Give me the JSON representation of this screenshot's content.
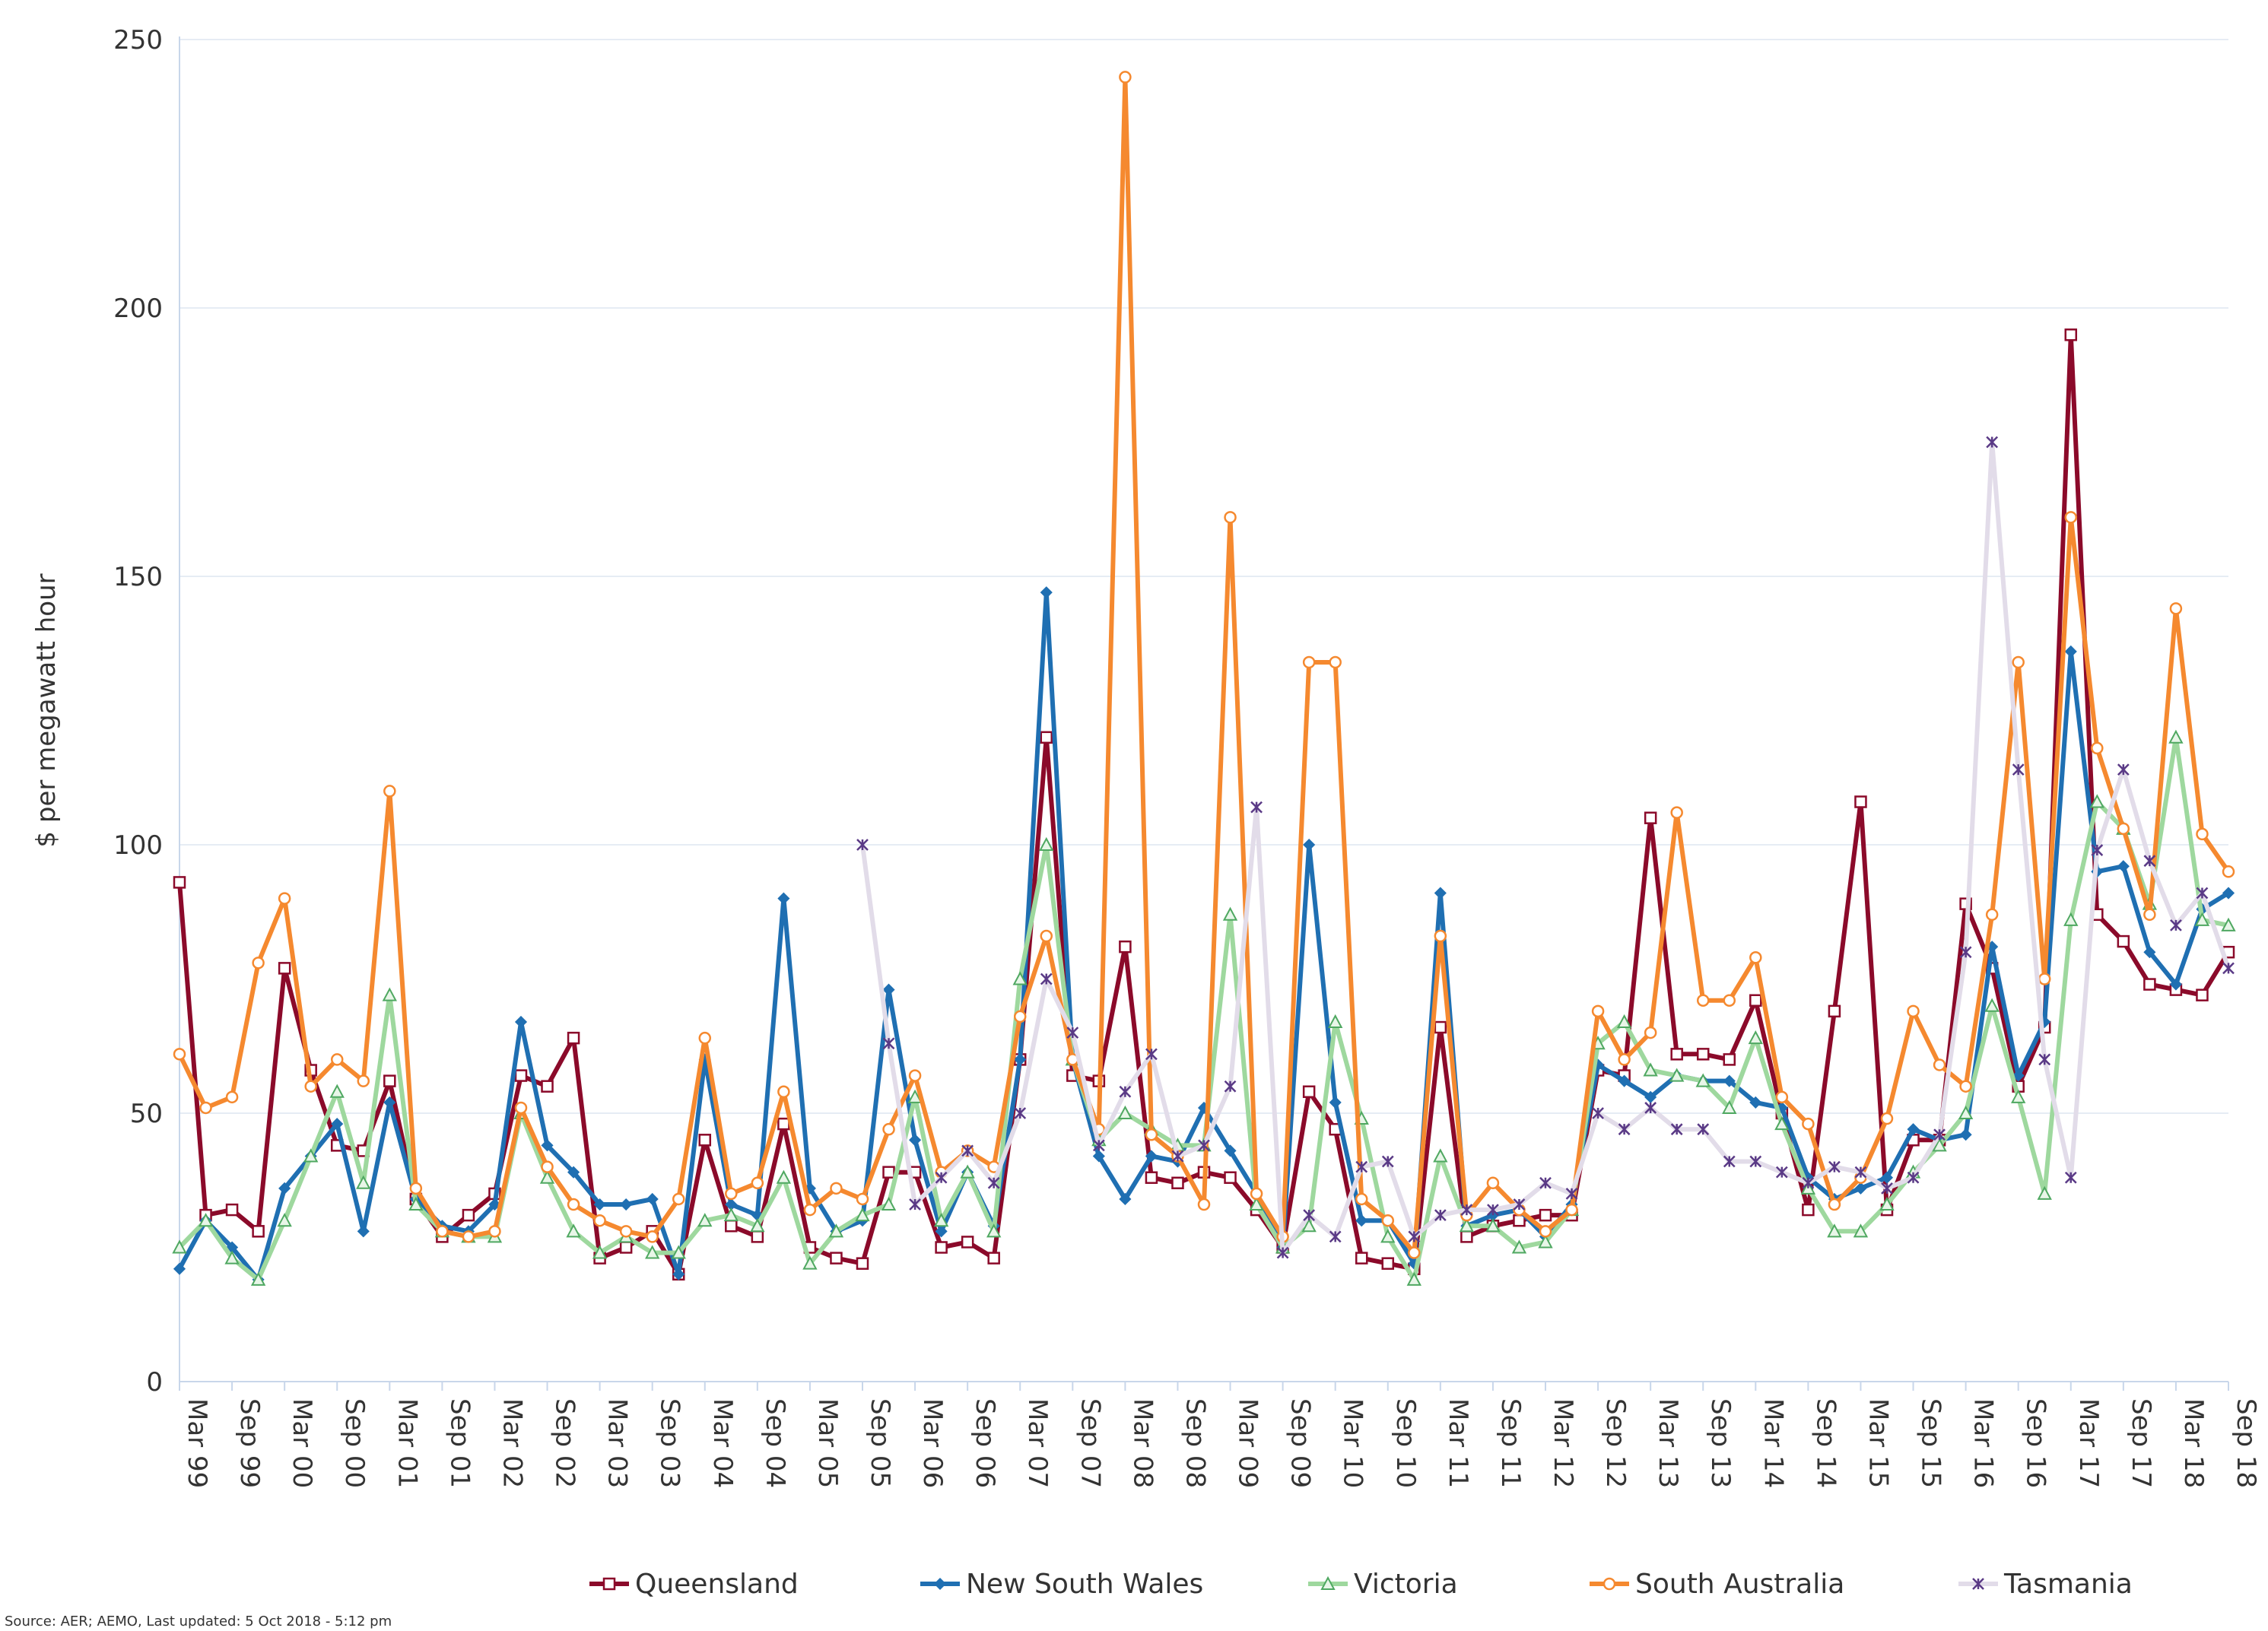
{
  "source_note": "Source: AER; AEMO, Last updated: 5 Oct 2018 - 5:12 pm",
  "chart_data": {
    "type": "line",
    "title": "",
    "xlabel": "",
    "ylabel": "$ per megawatt hour",
    "ylim": [
      0,
      250
    ],
    "yticks": [
      0,
      50,
      100,
      150,
      200,
      250
    ],
    "grid": true,
    "legend_position": "bottom",
    "x": [
      "Mar 99",
      "Jun 99",
      "Sep 99",
      "Dec 99",
      "Mar 00",
      "Jun 00",
      "Sep 00",
      "Dec 00",
      "Mar 01",
      "Jun 01",
      "Sep 01",
      "Dec 01",
      "Mar 02",
      "Jun 02",
      "Sep 02",
      "Dec 02",
      "Mar 03",
      "Jun 03",
      "Sep 03",
      "Dec 03",
      "Mar 04",
      "Jun 04",
      "Sep 04",
      "Dec 04",
      "Mar 05",
      "Jun 05",
      "Sep 05",
      "Dec 05",
      "Mar 06",
      "Jun 06",
      "Sep 06",
      "Dec 06",
      "Mar 07",
      "Jun 07",
      "Sep 07",
      "Dec 07",
      "Mar 08",
      "Jun 08",
      "Sep 08",
      "Dec 08",
      "Mar 09",
      "Jun 09",
      "Sep 09",
      "Dec 09",
      "Mar 10",
      "Jun 10",
      "Sep 10",
      "Dec 10",
      "Mar 11",
      "Jun 11",
      "Sep 11",
      "Dec 11",
      "Mar 12",
      "Jun 12",
      "Sep 12",
      "Dec 12",
      "Mar 13",
      "Jun 13",
      "Sep 13",
      "Dec 13",
      "Mar 14",
      "Jun 14",
      "Sep 14",
      "Dec 14",
      "Mar 15",
      "Jun 15",
      "Sep 15",
      "Dec 15",
      "Mar 16",
      "Jun 16",
      "Sep 16",
      "Dec 16",
      "Mar 17",
      "Jun 17",
      "Sep 17",
      "Dec 17",
      "Mar 18",
      "Jun 18",
      "Sep 18"
    ],
    "x_tick_labels": [
      "Mar 99",
      "Sep 99",
      "Mar 00",
      "Sep 00",
      "Mar 01",
      "Sep 01",
      "Mar 02",
      "Sep 02",
      "Mar 03",
      "Sep 03",
      "Mar 04",
      "Sep 04",
      "Mar 05",
      "Sep 05",
      "Mar 06",
      "Sep 06",
      "Mar 07",
      "Sep 07",
      "Mar 08",
      "Sep 08",
      "Mar 09",
      "Sep 09",
      "Mar 10",
      "Sep 10",
      "Mar 11",
      "Sep 11",
      "Mar 12",
      "Sep 12",
      "Mar 13",
      "Sep 13",
      "Mar 14",
      "Sep 14",
      "Mar 15",
      "Sep 15",
      "Mar 16",
      "Sep 16",
      "Mar 17",
      "Sep 17",
      "Mar 18",
      "Sep 18"
    ],
    "series": [
      {
        "name": "Queensland",
        "color": "#8b0a2a",
        "marker": "square",
        "values": [
          93,
          31,
          32,
          28,
          77,
          58,
          44,
          43,
          56,
          34,
          27,
          31,
          35,
          57,
          55,
          64,
          23,
          25,
          28,
          20,
          45,
          29,
          27,
          48,
          25,
          23,
          22,
          39,
          39,
          25,
          26,
          23,
          60,
          120,
          57,
          56,
          81,
          38,
          37,
          39,
          38,
          32,
          25,
          54,
          47,
          23,
          22,
          21,
          66,
          27,
          29,
          30,
          31,
          31,
          58,
          57,
          105,
          61,
          61,
          60,
          71,
          50,
          32,
          69,
          108,
          32,
          45,
          45,
          89,
          77,
          55,
          66,
          195,
          87,
          82,
          74,
          73,
          72,
          80
        ]
      },
      {
        "name": "New South Wales",
        "color": "#1f6fb2",
        "marker": "diamond",
        "values": [
          21,
          30,
          25,
          19,
          36,
          42,
          48,
          28,
          52,
          34,
          29,
          28,
          33,
          67,
          44,
          39,
          33,
          33,
          34,
          20,
          60,
          33,
          31,
          90,
          36,
          28,
          30,
          73,
          45,
          28,
          39,
          29,
          60,
          147,
          60,
          42,
          34,
          42,
          41,
          51,
          43,
          35,
          25,
          100,
          52,
          30,
          30,
          22,
          91,
          29,
          31,
          32,
          27,
          33,
          59,
          56,
          53,
          57,
          56,
          56,
          52,
          51,
          38,
          34,
          36,
          38,
          47,
          45,
          46,
          81,
          57,
          67,
          136,
          95,
          96,
          80,
          74,
          88,
          91
        ]
      },
      {
        "name": "Victoria",
        "color": "#9ed89e",
        "marker": "triangle",
        "values": [
          25,
          30,
          23,
          19,
          30,
          42,
          54,
          37,
          72,
          33,
          28,
          27,
          27,
          50,
          38,
          28,
          24,
          27,
          24,
          24,
          30,
          31,
          29,
          38,
          22,
          28,
          31,
          33,
          53,
          30,
          39,
          28,
          75,
          100,
          60,
          45,
          50,
          47,
          44,
          44,
          87,
          33,
          25,
          29,
          67,
          49,
          27,
          19,
          42,
          29,
          29,
          25,
          26,
          32,
          63,
          67,
          58,
          57,
          56,
          51,
          64,
          48,
          36,
          28,
          28,
          33,
          39,
          44,
          50,
          70,
          53,
          35,
          86,
          108,
          103,
          89,
          120,
          86,
          85
        ]
      },
      {
        "name": "South Australia",
        "color": "#f5892f",
        "marker": "circle",
        "values": [
          61,
          51,
          53,
          78,
          90,
          55,
          60,
          56,
          110,
          36,
          28,
          27,
          28,
          51,
          40,
          33,
          30,
          28,
          27,
          34,
          64,
          35,
          37,
          54,
          32,
          36,
          34,
          47,
          57,
          39,
          43,
          40,
          68,
          83,
          60,
          47,
          243,
          46,
          42,
          33,
          161,
          35,
          27,
          134,
          134,
          34,
          30,
          24,
          83,
          31,
          37,
          32,
          28,
          32,
          69,
          60,
          65,
          106,
          71,
          71,
          79,
          53,
          48,
          33,
          38,
          49,
          69,
          59,
          55,
          87,
          134,
          75,
          161,
          118,
          103,
          87,
          144,
          102,
          95
        ]
      },
      {
        "name": "Tasmania",
        "color": "#e2dce9",
        "marker": "star",
        "values": [
          null,
          null,
          null,
          null,
          null,
          null,
          null,
          null,
          null,
          null,
          null,
          null,
          null,
          null,
          null,
          null,
          null,
          null,
          null,
          null,
          null,
          null,
          null,
          null,
          null,
          null,
          100,
          63,
          33,
          38,
          43,
          37,
          50,
          75,
          65,
          44,
          54,
          61,
          42,
          44,
          55,
          107,
          24,
          31,
          27,
          40,
          41,
          27,
          31,
          32,
          32,
          33,
          37,
          35,
          50,
          47,
          51,
          47,
          47,
          41,
          41,
          39,
          37,
          40,
          39,
          36,
          38,
          46,
          80,
          175,
          114,
          60,
          38,
          99,
          114,
          97,
          85,
          91,
          77
        ]
      }
    ]
  }
}
